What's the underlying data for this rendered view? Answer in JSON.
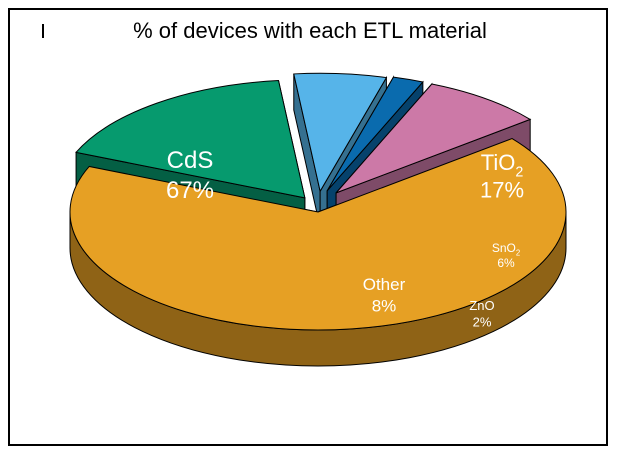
{
  "chart_data": {
    "type": "pie",
    "title": "% of devices with each ETL material",
    "slices": [
      {
        "base": "CdS",
        "sub": "",
        "label": "CdS",
        "value": 67,
        "value_text": "67%",
        "color": "#E6A024"
      },
      {
        "base": "TiO",
        "sub": "2",
        "label": "TiO2",
        "value": 17,
        "value_text": "17%",
        "color": "#069A6E"
      },
      {
        "base": "SnO",
        "sub": "2",
        "label": "SnO2",
        "value": 6,
        "value_text": "6%",
        "color": "#56B4E9"
      },
      {
        "base": "ZnO",
        "sub": "",
        "label": "ZnO",
        "value": 2,
        "value_text": "2%",
        "color": "#0A6BAE"
      },
      {
        "base": "Other",
        "sub": "",
        "label": "Other",
        "value": 8,
        "value_text": "8%",
        "color": "#CC79A7"
      }
    ]
  }
}
